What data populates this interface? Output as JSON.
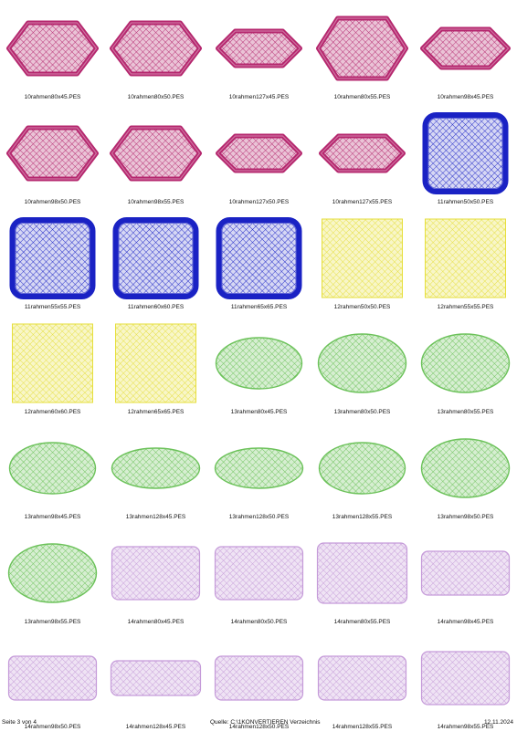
{
  "colors": {
    "magenta": "#b5276e",
    "blue": "#1a22c4",
    "yellow": "#e6df3c",
    "green": "#6cc25a",
    "lavender": "#c59bd9"
  },
  "items": [
    {
      "label": "10rahmen80x45.PES",
      "shape": "hexagon",
      "color": "magenta"
    },
    {
      "label": "10rahmen80x50.PES",
      "shape": "hexagon",
      "color": "magenta"
    },
    {
      "label": "10rahmen127x45.PES",
      "shape": "hexagon-wide",
      "color": "magenta"
    },
    {
      "label": "10rahmen80x55.PES",
      "shape": "hexagon-tall",
      "color": "magenta"
    },
    {
      "label": "10rahmen98x45.PES",
      "shape": "hexagon-mid",
      "color": "magenta"
    },
    {
      "label": "10rahmen98x50.PES",
      "shape": "hexagon",
      "color": "magenta"
    },
    {
      "label": "10rahmen98x55.PES",
      "shape": "hexagon",
      "color": "magenta"
    },
    {
      "label": "10rahmen127x50.PES",
      "shape": "hexagon-wide",
      "color": "magenta"
    },
    {
      "label": "10rahmen127x55.PES",
      "shape": "hexagon-wide",
      "color": "magenta"
    },
    {
      "label": "11rahmen50x50.PES",
      "shape": "rounded-square-frame",
      "color": "blue"
    },
    {
      "label": "11rahmen55x55.PES",
      "shape": "rounded-square-frame",
      "color": "blue"
    },
    {
      "label": "11rahmen60x60.PES",
      "shape": "rounded-square-frame",
      "color": "blue"
    },
    {
      "label": "11rahmen65x65.PES",
      "shape": "rounded-square-frame",
      "color": "blue"
    },
    {
      "label": "12rahmen50x50.PES",
      "shape": "square",
      "color": "yellow"
    },
    {
      "label": "12rahmen55x55.PES",
      "shape": "square",
      "color": "yellow"
    },
    {
      "label": "12rahmen60x60.PES",
      "shape": "square",
      "color": "yellow"
    },
    {
      "label": "12rahmen65x65.PES",
      "shape": "square",
      "color": "yellow"
    },
    {
      "label": "13rahmen80x45.PES",
      "shape": "oval",
      "color": "green"
    },
    {
      "label": "13rahmen80x50.PES",
      "shape": "oval-tall",
      "color": "green"
    },
    {
      "label": "13rahmen80x55.PES",
      "shape": "oval-tall",
      "color": "green"
    },
    {
      "label": "13rahmen98x45.PES",
      "shape": "oval",
      "color": "green"
    },
    {
      "label": "13rahmen128x45.PES",
      "shape": "oval-flat",
      "color": "green"
    },
    {
      "label": "13rahmen128x50.PES",
      "shape": "oval-flat",
      "color": "green"
    },
    {
      "label": "13rahmen128x55.PES",
      "shape": "oval",
      "color": "green"
    },
    {
      "label": "13rahmen98x50.PES",
      "shape": "oval-tall",
      "color": "green"
    },
    {
      "label": "13rahmen98x55.PES",
      "shape": "oval-tall",
      "color": "green"
    },
    {
      "label": "14rahmen80x45.PES",
      "shape": "rounded-rect",
      "color": "lavender"
    },
    {
      "label": "14rahmen80x50.PES",
      "shape": "rounded-rect",
      "color": "lavender"
    },
    {
      "label": "14rahmen80x55.PES",
      "shape": "rounded-rect-tall",
      "color": "lavender"
    },
    {
      "label": "14rahmen98x45.PES",
      "shape": "rounded-rect-flat",
      "color": "lavender"
    },
    {
      "label": "14rahmen98x50.PES",
      "shape": "rounded-rect-flat",
      "color": "lavender"
    },
    {
      "label": "14rahmen128x45.PES",
      "shape": "rounded-rect-thin",
      "color": "lavender"
    },
    {
      "label": "14rahmen128x50.PES",
      "shape": "rounded-rect-flat",
      "color": "lavender"
    },
    {
      "label": "14rahmen128x55.PES",
      "shape": "rounded-rect-flat",
      "color": "lavender"
    },
    {
      "label": "14rahmen98x55.PES",
      "shape": "rounded-rect",
      "color": "lavender"
    }
  ],
  "footer": {
    "page": "Seite 3 von 4",
    "source": "Quelle: C:\\1KONVERTIEREN Verzeichnis",
    "date": "12.11.2024"
  }
}
